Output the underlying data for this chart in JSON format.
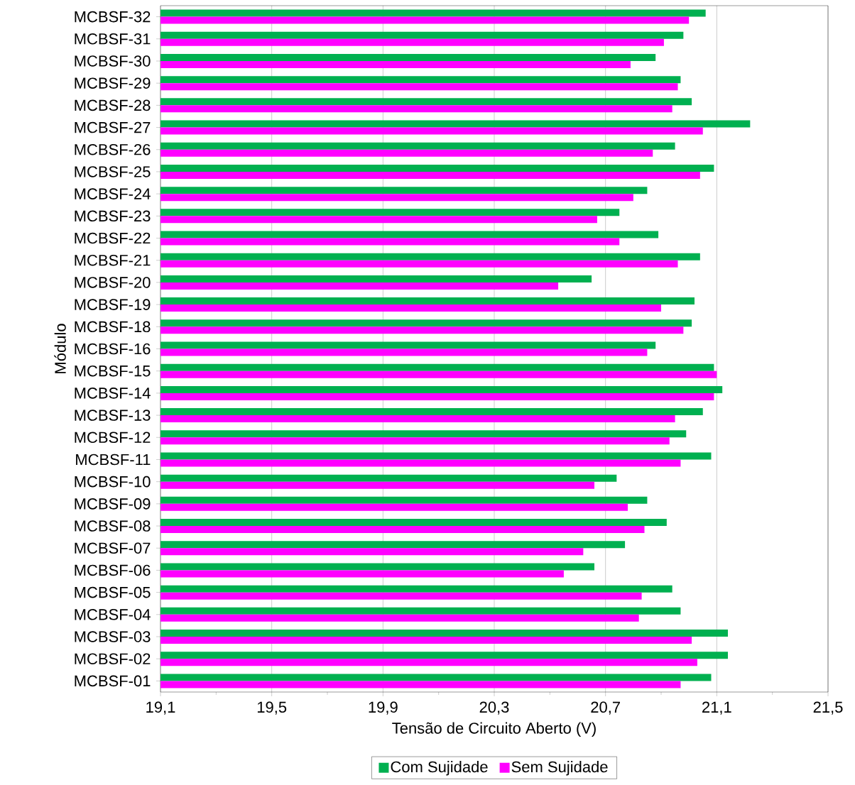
{
  "chart_data": {
    "type": "bar",
    "orientation": "horizontal",
    "xlabel": "Tensão de Circuito Aberto (V)",
    "ylabel": "Módulo",
    "categories": [
      "MCBSF-32",
      "MCBSF-31",
      "MCBSF-30",
      "MCBSF-29",
      "MCBSF-28",
      "MCBSF-27",
      "MCBSF-26",
      "MCBSF-25",
      "MCBSF-24",
      "MCBSF-23",
      "MCBSF-22",
      "MCBSF-21",
      "MCBSF-20",
      "MCBSF-19",
      "MCBSF-18",
      "MCBSF-16",
      "MCBSF-15",
      "MCBSF-14",
      "MCBSF-13",
      "MCBSF-12",
      "MCBSF-11",
      "MCBSF-10",
      "MCBSF-09",
      "MCBSF-08",
      "MCBSF-07",
      "MCBSF-06",
      "MCBSF-05",
      "MCBSF-04",
      "MCBSF-03",
      "MCBSF-02",
      "MCBSF-01"
    ],
    "series": [
      {
        "name": "Com Sujidade",
        "color": "#00b050",
        "values": [
          21.06,
          20.98,
          20.88,
          20.97,
          21.01,
          21.22,
          20.95,
          21.09,
          20.85,
          20.75,
          20.89,
          21.04,
          20.65,
          21.02,
          21.01,
          20.88,
          21.09,
          21.12,
          21.05,
          20.99,
          21.08,
          20.74,
          20.85,
          20.92,
          20.77,
          20.66,
          20.94,
          20.97,
          21.14,
          21.14,
          21.08
        ]
      },
      {
        "name": "Sem Sujidade",
        "color": "#ff00ff",
        "values": [
          21.0,
          20.91,
          20.79,
          20.96,
          20.94,
          21.05,
          20.87,
          21.04,
          20.8,
          20.67,
          20.75,
          20.96,
          20.53,
          20.9,
          20.98,
          20.85,
          21.1,
          21.09,
          20.95,
          20.93,
          20.97,
          20.66,
          20.78,
          20.84,
          20.62,
          20.55,
          20.83,
          20.82,
          21.01,
          21.03,
          20.97
        ]
      }
    ],
    "xlim": [
      19.1,
      21.5
    ],
    "xticks": [
      {
        "value": 19.1,
        "label": "19,1"
      },
      {
        "value": 19.3,
        "label": null
      },
      {
        "value": 19.5,
        "label": "19,5"
      },
      {
        "value": 19.7,
        "label": null
      },
      {
        "value": 19.9,
        "label": "19,9"
      },
      {
        "value": 20.1,
        "label": null
      },
      {
        "value": 20.3,
        "label": "20,3"
      },
      {
        "value": 20.5,
        "label": null
      },
      {
        "value": 20.7,
        "label": "20,7"
      },
      {
        "value": 20.9,
        "label": null
      },
      {
        "value": 21.1,
        "label": "21,1"
      },
      {
        "value": 21.3,
        "label": null
      },
      {
        "value": 21.5,
        "label": "21,5"
      }
    ],
    "grid": "x",
    "legend": "bottom"
  }
}
